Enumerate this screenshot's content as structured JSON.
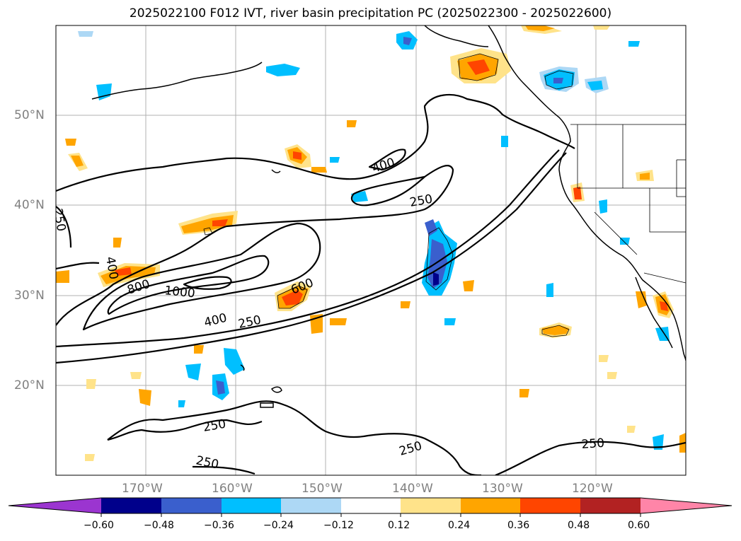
{
  "title": "2025022100 F012 IVT, river basin precipitation PC (2025022300 - 2025022600)",
  "map": {
    "lat_ticks": [
      "50°N",
      "40°N",
      "30°N",
      "20°N"
    ],
    "lon_ticks": [
      "170°W",
      "160°W",
      "150°W",
      "140°W",
      "130°W",
      "120°W"
    ],
    "contour_labels": [
      "250",
      "400",
      "600",
      "800",
      "1000"
    ],
    "ivt_contour_levels": [
      250,
      400,
      600,
      800,
      1000
    ],
    "grid": true
  },
  "colorbar": {
    "ticks": [
      "−0.60",
      "−0.48",
      "−0.36",
      "−0.24",
      "−0.12",
      "0.12",
      "0.24",
      "0.36",
      "0.48",
      "0.60"
    ],
    "colors": [
      "#9b35d0",
      "#00008b",
      "#3a5fcd",
      "#00bfff",
      "#add8f5",
      "#ffffff",
      "#ffe38a",
      "#ffa500",
      "#ff4500",
      "#b22222",
      "#ff85a8"
    ],
    "extend": "both"
  }
}
